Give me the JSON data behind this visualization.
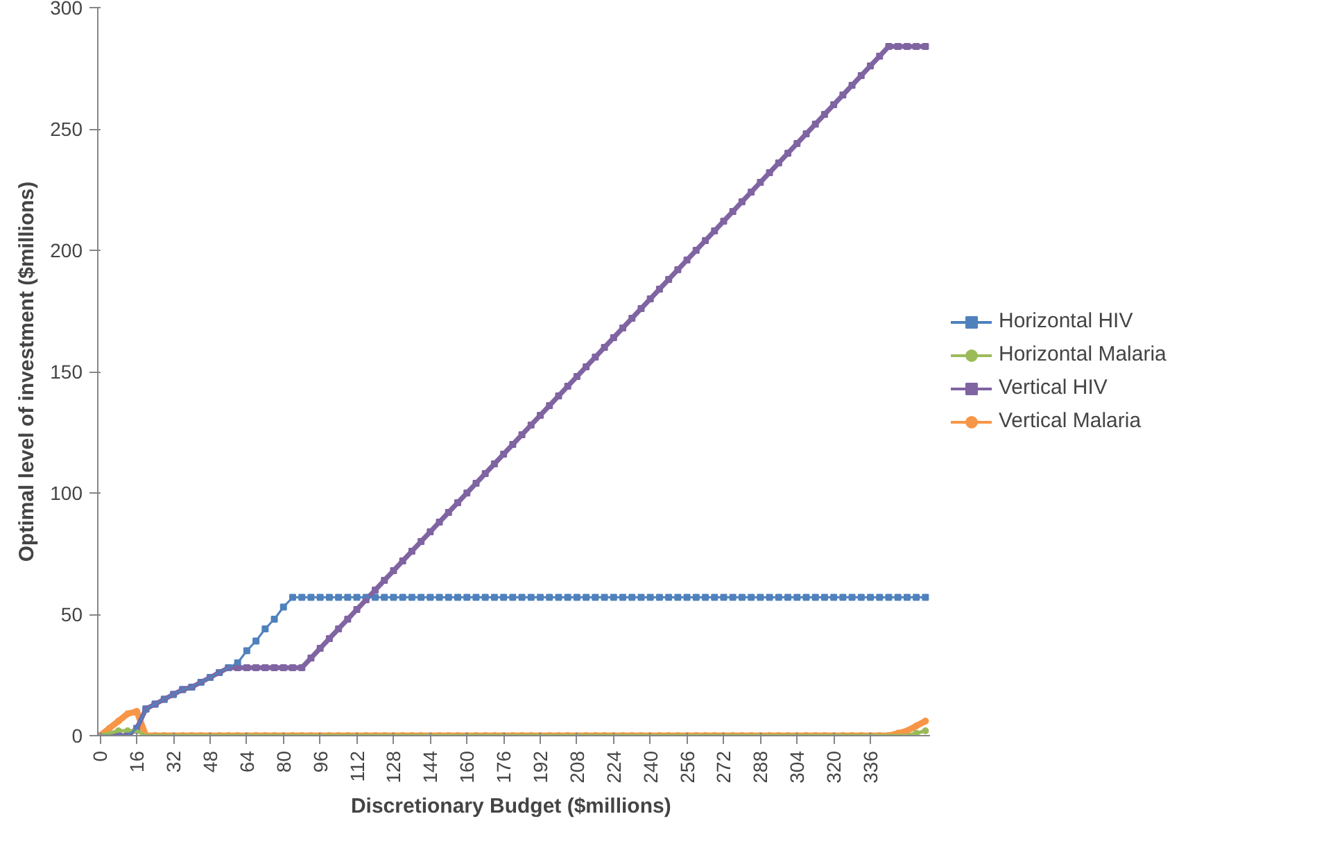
{
  "chart_data": {
    "type": "line",
    "xlabel": "Discretionary  Budget ($millions)",
    "ylabel": "Optimal level of investment ($millions)",
    "x": [
      0,
      4,
      8,
      12,
      16,
      20,
      24,
      28,
      32,
      36,
      40,
      44,
      48,
      52,
      56,
      60,
      64,
      68,
      72,
      76,
      80,
      84,
      88,
      92,
      96,
      100,
      104,
      108,
      112,
      116,
      120,
      124,
      128,
      132,
      136,
      140,
      144,
      148,
      152,
      156,
      160,
      164,
      168,
      172,
      176,
      180,
      184,
      188,
      192,
      196,
      200,
      204,
      208,
      212,
      216,
      220,
      224,
      228,
      232,
      236,
      240,
      244,
      248,
      252,
      256,
      260,
      264,
      268,
      272,
      276,
      280,
      284,
      288,
      292,
      296,
      300,
      304,
      308,
      312,
      316,
      320,
      324,
      328,
      332,
      336,
      340,
      344,
      348,
      352,
      356,
      360
    ],
    "xlim": [
      -1,
      362
    ],
    "xticks": [
      0,
      16,
      32,
      48,
      64,
      80,
      96,
      112,
      128,
      144,
      160,
      176,
      192,
      208,
      224,
      240,
      256,
      272,
      288,
      304,
      320,
      336
    ],
    "ylim": [
      0,
      300
    ],
    "yticks": [
      0,
      50,
      100,
      150,
      200,
      250,
      300
    ],
    "grid": false,
    "legend": "right",
    "line_style": "solid",
    "series": [
      {
        "name": "Horizontal HIV",
        "color": "#4f81bd",
        "marker": "square",
        "values": [
          0,
          0,
          0,
          0,
          3,
          11,
          13,
          15,
          17,
          19,
          20,
          22,
          24,
          26,
          28,
          30,
          35,
          39,
          44,
          48,
          53,
          57,
          57,
          57,
          57,
          57,
          57,
          57,
          57,
          57,
          57,
          57,
          57,
          57,
          57,
          57,
          57,
          57,
          57,
          57,
          57,
          57,
          57,
          57,
          57,
          57,
          57,
          57,
          57,
          57,
          57,
          57,
          57,
          57,
          57,
          57,
          57,
          57,
          57,
          57,
          57,
          57,
          57,
          57,
          57,
          57,
          57,
          57,
          57,
          57,
          57,
          57,
          57,
          57,
          57,
          57,
          57,
          57,
          57,
          57,
          57,
          57,
          57,
          57,
          57,
          57,
          57,
          57,
          57,
          57,
          57
        ]
      },
      {
        "name": "Horizontal Malaria",
        "color": "#9bbb59",
        "marker": "circle",
        "values": [
          0,
          1,
          2,
          2,
          2,
          0,
          0,
          0,
          0,
          0,
          0,
          0,
          0,
          0,
          0,
          0,
          0,
          0,
          0,
          0,
          0,
          0,
          0,
          0,
          0,
          0,
          0,
          0,
          0,
          0,
          0,
          0,
          0,
          0,
          0,
          0,
          0,
          0,
          0,
          0,
          0,
          0,
          0,
          0,
          0,
          0,
          0,
          0,
          0,
          0,
          0,
          0,
          0,
          0,
          0,
          0,
          0,
          0,
          0,
          0,
          0,
          0,
          0,
          0,
          0,
          0,
          0,
          0,
          0,
          0,
          0,
          0,
          0,
          0,
          0,
          0,
          0,
          0,
          0,
          0,
          0,
          0,
          0,
          0,
          0,
          0,
          0,
          0,
          0,
          1,
          2
        ]
      },
      {
        "name": "Vertical HIV",
        "color": "#8064a2",
        "marker": "square",
        "values": [
          0,
          0,
          0,
          0,
          3,
          11,
          13,
          15,
          17,
          19,
          20,
          22,
          24,
          26,
          28,
          28,
          28,
          28,
          28,
          28,
          28,
          28,
          28,
          32,
          36,
          40,
          44,
          48,
          52,
          56,
          60,
          64,
          68,
          72,
          76,
          80,
          84,
          88,
          92,
          96,
          100,
          104,
          108,
          112,
          116,
          120,
          124,
          128,
          132,
          136,
          140,
          144,
          148,
          152,
          156,
          160,
          164,
          168,
          172,
          176,
          180,
          184,
          188,
          192,
          196,
          200,
          204,
          208,
          212,
          216,
          220,
          224,
          228,
          232,
          236,
          240,
          244,
          248,
          252,
          256,
          260,
          264,
          268,
          272,
          276,
          280,
          284,
          284,
          284,
          284,
          284
        ]
      },
      {
        "name": "Vertical Malaria",
        "color": "#f79646",
        "marker": "circle",
        "values": [
          0,
          3,
          6,
          9,
          10,
          0,
          0,
          0,
          0,
          0,
          0,
          0,
          0,
          0,
          0,
          0,
          0,
          0,
          0,
          0,
          0,
          0,
          0,
          0,
          0,
          0,
          0,
          0,
          0,
          0,
          0,
          0,
          0,
          0,
          0,
          0,
          0,
          0,
          0,
          0,
          0,
          0,
          0,
          0,
          0,
          0,
          0,
          0,
          0,
          0,
          0,
          0,
          0,
          0,
          0,
          0,
          0,
          0,
          0,
          0,
          0,
          0,
          0,
          0,
          0,
          0,
          0,
          0,
          0,
          0,
          0,
          0,
          0,
          0,
          0,
          0,
          0,
          0,
          0,
          0,
          0,
          0,
          0,
          0,
          0,
          0,
          0,
          1,
          2,
          4,
          6
        ]
      }
    ]
  }
}
